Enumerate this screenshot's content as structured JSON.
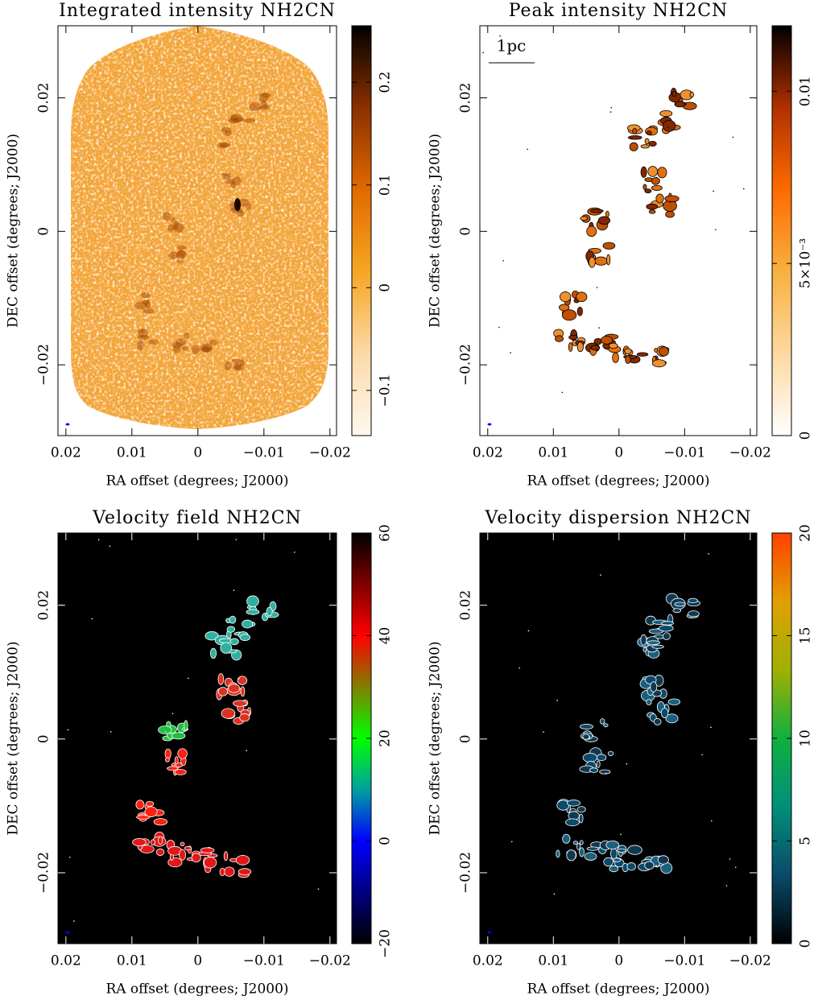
{
  "chart_data": [
    {
      "type": "image",
      "title": "Integrated intensity NH2CN",
      "xlabel": "RA offset (degrees; J2000)",
      "ylabel": "DEC offset (degrees; J2000)",
      "xlim": [
        0.0212,
        -0.021
      ],
      "ylim": [
        -0.0306,
        0.0308
      ],
      "xticks": [
        0.02,
        0.01,
        0,
        {
          "value": -0.01,
          "label": "−0.01"
        },
        {
          "value": -0.02,
          "label": "−0.02"
        }
      ],
      "yticks": [
        0.02,
        0,
        {
          "value": -0.02,
          "label": "−0.02"
        }
      ],
      "clim": [
        -0.144,
        0.255
      ],
      "cticks": [
        {
          "value": -0.1,
          "label": "−0.1"
        },
        0,
        0.1,
        0.2
      ],
      "colormap": [
        "#fff8f0",
        "#fcd9a8",
        "#f6a623",
        "#e06a00",
        "#8b3000",
        "#000000"
      ]
    },
    {
      "type": "image",
      "title": "Peak intensity NH2CN",
      "xlabel": "RA offset (degrees; J2000)",
      "ylabel": "DEC offset (degrees; J2000)",
      "xlim": [
        0.0212,
        -0.021
      ],
      "ylim": [
        -0.0306,
        0.0308
      ],
      "xticks": [
        0.02,
        0.01,
        0,
        {
          "value": -0.01,
          "label": "−0.01"
        },
        {
          "value": -0.02,
          "label": "−0.02"
        }
      ],
      "yticks": [
        0.02,
        0,
        {
          "value": -0.02,
          "label": "−0.02"
        }
      ],
      "clim": [
        0,
        0.0119
      ],
      "cticks": [
        0,
        {
          "value": 0.005,
          "label": "5×10⁻³"
        },
        0.01
      ],
      "colormap": [
        "#ffffff",
        "#fcd9a0",
        "#f8b040",
        "#ff6a00",
        "#b03000",
        "#000000"
      ],
      "annotation": "1pc"
    },
    {
      "type": "image",
      "title": "Velocity field NH2CN",
      "xlabel": "RA offset (degrees; J2000)",
      "ylabel": "DEC offset (degrees; J2000)",
      "xlim": [
        0.0212,
        -0.021
      ],
      "ylim": [
        -0.0306,
        0.0308
      ],
      "xticks": [
        0.02,
        0.01,
        0,
        {
          "value": -0.01,
          "label": "−0.01"
        },
        {
          "value": -0.02,
          "label": "−0.02"
        }
      ],
      "yticks": [
        0.02,
        0,
        {
          "value": -0.02,
          "label": "−0.02"
        }
      ],
      "clim": [
        -20,
        60
      ],
      "cticks": [
        {
          "value": -20,
          "label": "−20"
        },
        0,
        20,
        40,
        60
      ],
      "colormap": [
        "#000000",
        "#000080",
        "#0000ff",
        "#00a0a0",
        "#00ff00",
        "#808000",
        "#ff0000",
        "#800000",
        "#000000"
      ]
    },
    {
      "type": "image",
      "title": "Velocity dispersion NH2CN",
      "xlabel": "RA offset (degrees; J2000)",
      "ylabel": "DEC offset (degrees; J2000)",
      "xlim": [
        0.0212,
        -0.021
      ],
      "ylim": [
        -0.0306,
        0.0308
      ],
      "xticks": [
        0.02,
        0.01,
        0,
        {
          "value": -0.01,
          "label": "−0.01"
        },
        {
          "value": -0.02,
          "label": "−0.02"
        }
      ],
      "yticks": [
        0.02,
        0,
        {
          "value": -0.02,
          "label": "−0.02"
        }
      ],
      "clim": [
        0,
        20
      ],
      "cticks": [
        0,
        5,
        10,
        15,
        20
      ],
      "colormap": [
        "#000000",
        "#0a4a6a",
        "#00907a",
        "#10b040",
        "#a0b000",
        "#e0a000",
        "#ff4000"
      ]
    }
  ]
}
